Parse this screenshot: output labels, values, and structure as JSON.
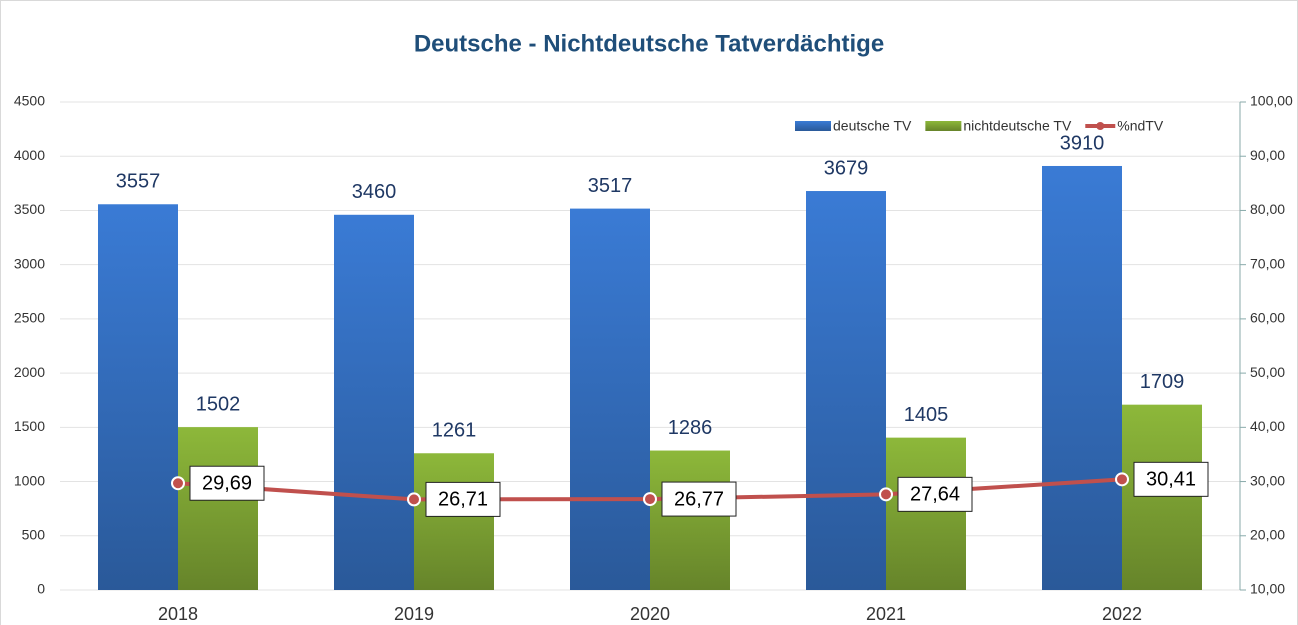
{
  "chart_data": {
    "type": "bar",
    "title": "Deutsche - Nichtdeutsche Tatverdächtige",
    "categories": [
      "2018",
      "2019",
      "2020",
      "2021",
      "2022"
    ],
    "series": [
      {
        "name": "deutsche TV",
        "color": "#3a7bd5",
        "values": [
          3557,
          3460,
          3517,
          3679,
          3910
        ]
      },
      {
        "name": "nichtdeutsche TV",
        "color": "#8db83a",
        "values": [
          1502,
          1261,
          1286,
          1405,
          1709
        ]
      },
      {
        "name": "%ndTV",
        "type": "line",
        "axis": "y2",
        "color": "#c0504d",
        "values": [
          29.69,
          26.71,
          26.77,
          27.64,
          30.41
        ],
        "value_labels": [
          "29,69",
          "26,71",
          "26,77",
          "27,64",
          "30,41"
        ]
      }
    ],
    "ylim": [
      0,
      4500
    ],
    "yticks": [
      0,
      500,
      1000,
      1500,
      2000,
      2500,
      3000,
      3500,
      4000,
      4500
    ],
    "y2lim": [
      10,
      100
    ],
    "y2ticks": [
      {
        "value": 10,
        "label": "10,00"
      },
      {
        "value": 20,
        "label": "20,00"
      },
      {
        "value": 30,
        "label": "30,00"
      },
      {
        "value": 40,
        "label": "40,00"
      },
      {
        "value": 50,
        "label": "50,00"
      },
      {
        "value": 60,
        "label": "60,00"
      },
      {
        "value": 70,
        "label": "70,00"
      },
      {
        "value": 80,
        "label": "80,00"
      },
      {
        "value": 90,
        "label": "90,00"
      },
      {
        "value": 100,
        "label": "100,00"
      }
    ],
    "grid": true,
    "legend": "top-right"
  }
}
